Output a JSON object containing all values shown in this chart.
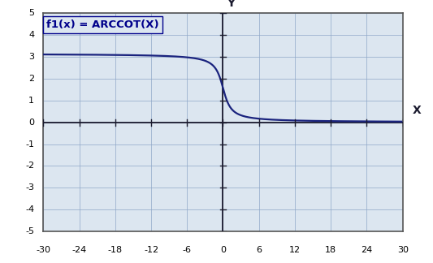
{
  "formula_label": "f1(x) = ARCCOT(X)",
  "formula_color": "#00008B",
  "curve_color": "#1a237e",
  "curve_linewidth": 1.6,
  "xlim": [
    -30,
    30
  ],
  "ylim": [
    -5,
    5
  ],
  "xticks": [
    -30,
    -24,
    -18,
    -12,
    -6,
    0,
    6,
    12,
    18,
    24,
    30
  ],
  "yticks": [
    -5,
    -4,
    -3,
    -2,
    -1,
    0,
    1,
    2,
    3,
    4,
    5
  ],
  "xtick_labels": [
    "-30",
    "-24",
    "-18",
    "-12",
    "-6",
    "0",
    "6",
    "12",
    "18",
    "24",
    "30"
  ],
  "ytick_labels": [
    "5",
    "4",
    "3",
    "2",
    "1",
    "0",
    "-1",
    "-2",
    "-3",
    "-4",
    "-5"
  ],
  "grid_color": "#8fa8c8",
  "grid_linewidth": 0.5,
  "plot_bg_color": "#dce6f0",
  "outer_bg_color": "#ffffff",
  "axis_color": "#1a1a2e",
  "xlabel": "X",
  "ylabel": "Y",
  "tick_label_fontsize": 8,
  "formula_fontsize": 9.5,
  "border_color": "#555555"
}
